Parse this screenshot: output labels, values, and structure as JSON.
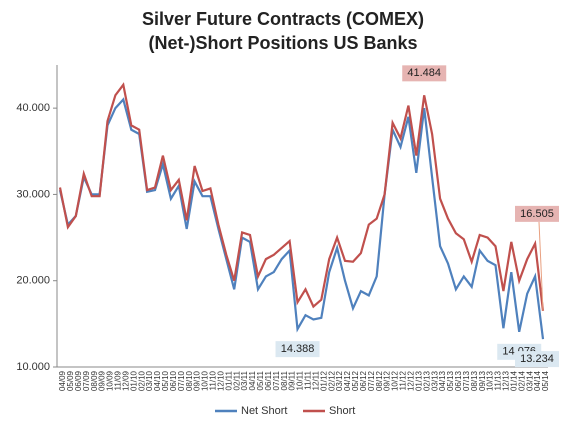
{
  "chart_data": {
    "type": "line",
    "title": "Silver Future Contracts (COMEX)",
    "subtitle": "(Net-)Short Positions US Banks",
    "categories": [
      "04/09",
      "05/09",
      "06/09",
      "07/09",
      "08/09",
      "09/09",
      "10/09",
      "11/09",
      "12/09",
      "01/10",
      "02/10",
      "03/10",
      "04/10",
      "05/10",
      "06/10",
      "07/10",
      "08/10",
      "09/10",
      "10/10",
      "11/10",
      "12/10",
      "01/11",
      "02/11",
      "03/11",
      "04/11",
      "05/11",
      "06/11",
      "07/11",
      "08/11",
      "09/11",
      "10/11",
      "11/11",
      "12/11",
      "01/12",
      "02/12",
      "03/12",
      "04/12",
      "05/12",
      "06/12",
      "07/12",
      "08/12",
      "09/12",
      "10/12",
      "11/12",
      "12/12",
      "01/13",
      "02/13",
      "03/13",
      "04/13",
      "05/13",
      "06/13",
      "07/13",
      "08/13",
      "09/13",
      "10/13",
      "11/13",
      "12/13",
      "01/14",
      "02/14",
      "03/14",
      "04/14",
      "05/14"
    ],
    "series": [
      {
        "name": "Net Short",
        "color": "#4f81bd",
        "values": [
          30.5,
          26.5,
          27.5,
          32,
          30,
          30,
          38,
          40,
          41,
          37.5,
          37,
          30.3,
          30.5,
          33.5,
          29.5,
          31,
          26,
          31.5,
          29.8,
          29.8,
          26,
          22.5,
          19,
          25,
          24.5,
          19,
          20.5,
          21,
          22.5,
          23.5,
          14.388,
          16,
          15.5,
          15.7,
          21,
          23.8,
          20,
          16.8,
          18.8,
          18.3,
          20.5,
          30,
          37.5,
          35.5,
          39,
          32.5,
          40,
          32,
          24,
          22,
          19,
          20.5,
          19.3,
          23.5,
          22.3,
          21.8,
          14.5,
          21,
          14.076,
          18.5,
          20.5,
          13.234
        ],
        "value_labels": [
          null,
          null,
          null,
          null,
          null,
          null,
          null,
          null,
          null,
          null,
          null,
          null,
          null,
          null,
          null,
          null,
          null,
          null,
          null,
          null,
          null,
          null,
          null,
          null,
          null,
          null,
          null,
          null,
          null,
          null,
          "14.388",
          null,
          null,
          null,
          null,
          null,
          null,
          null,
          null,
          null,
          null,
          null,
          null,
          null,
          null,
          null,
          null,
          null,
          null,
          null,
          null,
          null,
          null,
          null,
          null,
          null,
          null,
          null,
          "14.076",
          null,
          null,
          "13.234"
        ]
      },
      {
        "name": "Short",
        "color": "#c0504d",
        "values": [
          30.8,
          26.2,
          27.5,
          32.4,
          29.8,
          29.8,
          38.5,
          41.5,
          42.7,
          38,
          37.5,
          30.5,
          30.8,
          34.5,
          30.5,
          31.7,
          27,
          33.3,
          30.4,
          30.7,
          26.5,
          23,
          20,
          25.6,
          25.3,
          20.5,
          22.5,
          23,
          23.8,
          24.6,
          17.5,
          19,
          17,
          17.8,
          22.5,
          25,
          22.3,
          22.2,
          23.2,
          26.5,
          27.2,
          30,
          38.3,
          36.5,
          40.3,
          34.5,
          41.484,
          37,
          29.5,
          27.2,
          25.5,
          24.8,
          22.2,
          25.3,
          25,
          24,
          18.8,
          24.5,
          20,
          22.5,
          24.3,
          16.505
        ],
        "value_labels": [
          null,
          null,
          null,
          null,
          null,
          null,
          null,
          null,
          null,
          null,
          null,
          null,
          null,
          null,
          null,
          null,
          null,
          null,
          null,
          null,
          null,
          null,
          null,
          null,
          null,
          null,
          null,
          null,
          null,
          null,
          null,
          null,
          null,
          null,
          null,
          null,
          null,
          null,
          null,
          null,
          null,
          null,
          null,
          null,
          null,
          null,
          "41.484",
          null,
          null,
          null,
          null,
          null,
          null,
          null,
          null,
          null,
          null,
          null,
          null,
          null,
          null,
          "16.505"
        ]
      }
    ],
    "ylim": [
      10,
      45
    ],
    "yticks": [
      {
        "value": 10,
        "label": "10.000"
      },
      {
        "value": 20,
        "label": "20.000"
      },
      {
        "value": 30,
        "label": "30.000"
      },
      {
        "value": 40,
        "label": "40.000"
      }
    ],
    "legend": "bottom"
  }
}
